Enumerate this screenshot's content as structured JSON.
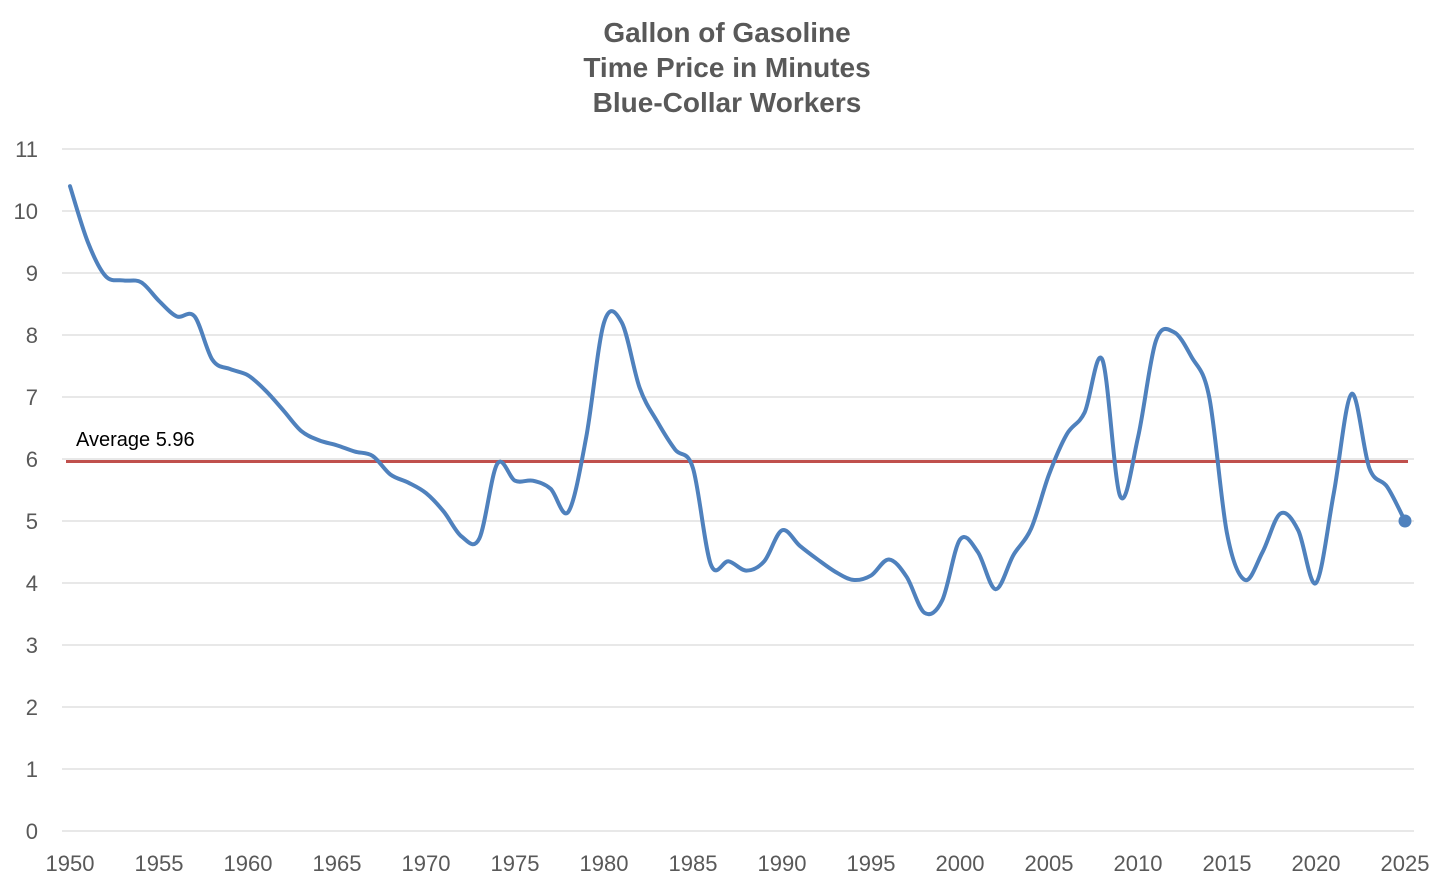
{
  "chart_data": {
    "type": "line",
    "title": [
      "Gallon of Gasoline",
      "Time Price in Minutes",
      "Blue-Collar Workers"
    ],
    "xlabel": "",
    "ylabel": "",
    "xlim": [
      1950,
      2025
    ],
    "ylim": [
      0,
      11
    ],
    "x_ticks": [
      1950,
      1955,
      1960,
      1965,
      1970,
      1975,
      1980,
      1985,
      1990,
      1995,
      2000,
      2005,
      2010,
      2015,
      2020,
      2025
    ],
    "y_ticks": [
      0,
      1,
      2,
      3,
      4,
      5,
      6,
      7,
      8,
      9,
      10,
      11
    ],
    "grid": "horizontal",
    "legend": "none",
    "series": [
      {
        "color": "#4f81bd",
        "x": [
          1950,
          1951,
          1952,
          1953,
          1954,
          1955,
          1956,
          1957,
          1958,
          1959,
          1960,
          1961,
          1962,
          1963,
          1964,
          1965,
          1966,
          1967,
          1968,
          1969,
          1970,
          1971,
          1972,
          1973,
          1974,
          1975,
          1976,
          1977,
          1978,
          1979,
          1980,
          1981,
          1982,
          1983,
          1984,
          1985,
          1986,
          1987,
          1988,
          1989,
          1990,
          1991,
          1992,
          1993,
          1994,
          1995,
          1996,
          1997,
          1998,
          1999,
          2000,
          2001,
          2002,
          2003,
          2004,
          2005,
          2006,
          2007,
          2008,
          2009,
          2010,
          2011,
          2012,
          2013,
          2014,
          2015,
          2016,
          2017,
          2018,
          2019,
          2020,
          2021,
          2022,
          2023,
          2024,
          2025
        ],
        "values": [
          10.4,
          9.5,
          8.95,
          8.88,
          8.85,
          8.55,
          8.3,
          8.3,
          7.6,
          7.45,
          7.35,
          7.1,
          6.78,
          6.45,
          6.3,
          6.22,
          6.12,
          6.05,
          5.75,
          5.62,
          5.45,
          5.15,
          4.75,
          4.72,
          5.92,
          5.65,
          5.65,
          5.52,
          5.15,
          6.35,
          8.2,
          8.2,
          7.15,
          6.6,
          6.15,
          5.85,
          4.3,
          4.35,
          4.2,
          4.35,
          4.85,
          4.6,
          4.38,
          4.18,
          4.05,
          4.12,
          4.38,
          4.1,
          3.52,
          3.72,
          4.7,
          4.5,
          3.9,
          4.45,
          4.88,
          5.75,
          6.4,
          6.75,
          7.6,
          5.4,
          6.35,
          7.9,
          8.05,
          7.65,
          7.0,
          4.8,
          4.05,
          4.5,
          5.12,
          4.85,
          4.0,
          5.45,
          7.05,
          5.85,
          5.55,
          5.0
        ]
      }
    ],
    "reference_line": {
      "label": "Average 5.96",
      "value": 5.96,
      "color": "#c0504d"
    }
  }
}
